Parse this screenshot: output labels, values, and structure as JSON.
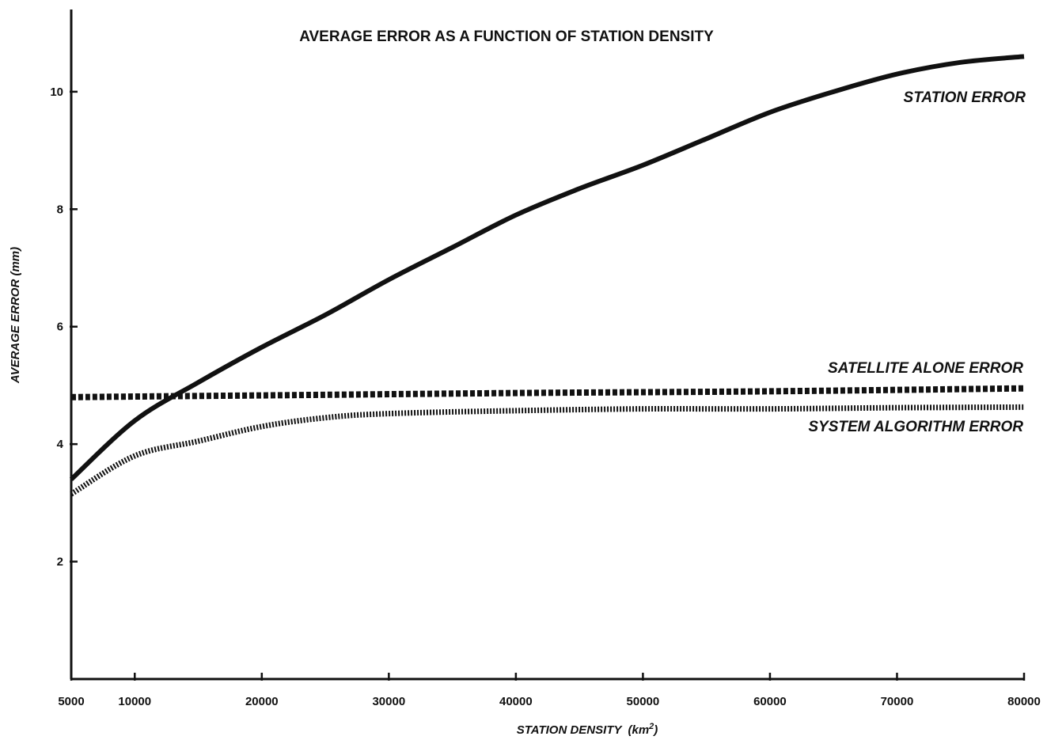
{
  "chart_data": {
    "type": "line",
    "title": "AVERAGE ERROR AS A FUNCTION OF STATION DENSITY",
    "xlabel": "STATION DENSITY",
    "xlabel_unit": "(km",
    "xlabel_unit_sup": "2",
    "xlabel_unit_close": ")",
    "ylabel": "AVERAGE ERROR  (mm)",
    "xlim": [
      5000,
      80000
    ],
    "ylim": [
      0,
      11.4
    ],
    "x_ticks": [
      5000,
      10000,
      20000,
      30000,
      40000,
      50000,
      60000,
      70000,
      80000
    ],
    "x_tick_labels": [
      "5000",
      "10000",
      "20000",
      "30000",
      "40000",
      "50000",
      "60000",
      "70000",
      "80000"
    ],
    "y_ticks": [
      2,
      4,
      6,
      8,
      10
    ],
    "y_tick_labels": [
      "2",
      "4",
      "6",
      "8",
      "10"
    ],
    "grid": false,
    "legend": "none",
    "series": [
      {
        "name": "STATION ERROR",
        "style": "solid",
        "color": "#111111",
        "x": [
          5000,
          10000,
          15000,
          20000,
          25000,
          30000,
          35000,
          40000,
          45000,
          50000,
          55000,
          60000,
          65000,
          70000,
          75000,
          80000
        ],
        "values": [
          3.4,
          4.4,
          5.05,
          5.65,
          6.2,
          6.8,
          7.35,
          7.9,
          8.35,
          8.75,
          9.2,
          9.65,
          10.0,
          10.3,
          10.5,
          10.6
        ]
      },
      {
        "name": "SATELLITE ALONE ERROR",
        "style": "dashed",
        "color": "#111111",
        "x": [
          5000,
          20000,
          40000,
          60000,
          80000
        ],
        "values": [
          4.8,
          4.83,
          4.87,
          4.9,
          4.95
        ]
      },
      {
        "name": "SYSTEM ALGORITHM ERROR",
        "style": "dotted",
        "color": "#111111",
        "x": [
          5000,
          10000,
          15000,
          20000,
          25000,
          30000,
          40000,
          50000,
          60000,
          70000,
          80000
        ],
        "values": [
          3.15,
          3.8,
          4.05,
          4.3,
          4.45,
          4.52,
          4.57,
          4.6,
          4.6,
          4.62,
          4.63
        ]
      }
    ]
  }
}
